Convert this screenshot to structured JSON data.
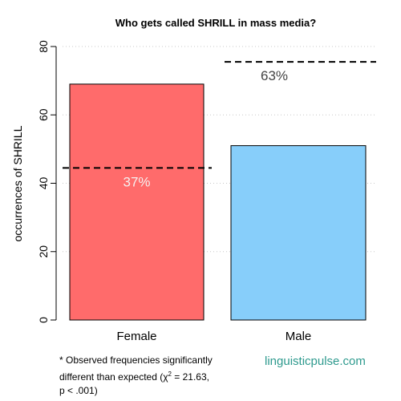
{
  "chart_data": {
    "type": "bar",
    "title": "Who gets called SHRILL in mass media?",
    "ylabel": "occurrences of SHRILL",
    "xlabel": "",
    "ylim": [
      0,
      80
    ],
    "yticks": [
      0,
      20,
      40,
      60,
      80
    ],
    "categories": [
      "Female",
      "Male"
    ],
    "values": [
      69,
      51
    ],
    "bar_colors": [
      "#ff6b6b",
      "#87cefa"
    ],
    "expected": [
      {
        "value": 44.5,
        "label": "37%",
        "label_color": "#f5f0f0"
      },
      {
        "value": 75.5,
        "label": "63%",
        "label_color": "#444444"
      }
    ],
    "grid": "horizontal dotted"
  },
  "footnote": {
    "line1": "* Observed frequencies significantly",
    "line2_prefix": "different than expected (χ",
    "line2_sup": "2",
    "line2_suffix": " = 21.63,",
    "line3": "p < .001)"
  },
  "source": "linguisticpulse.com"
}
